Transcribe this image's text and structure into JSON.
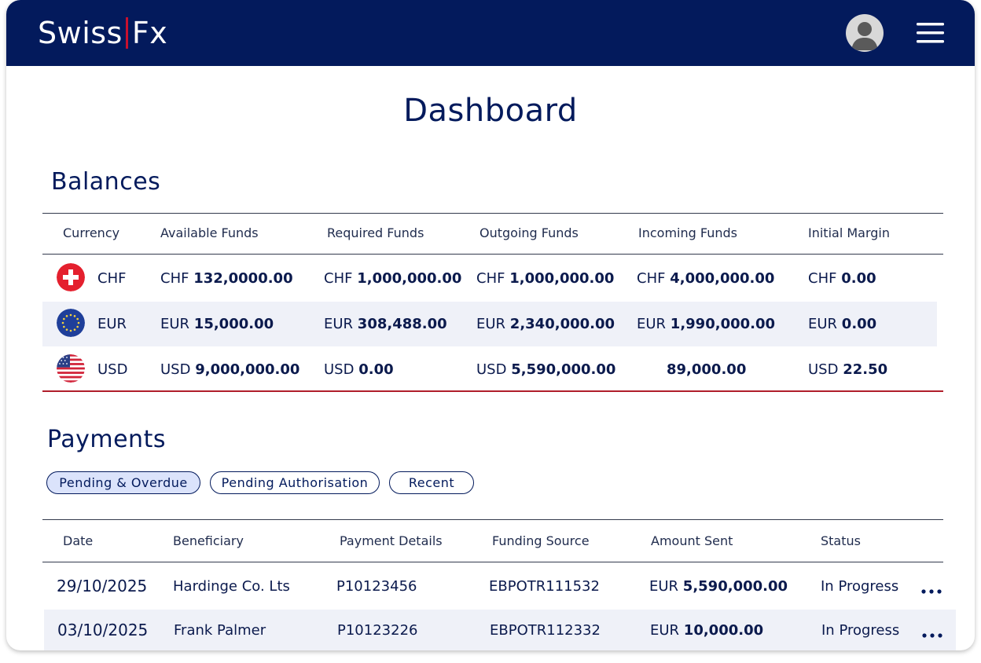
{
  "header": {
    "logo_left": "Swiss",
    "logo_right": "Fx",
    "brand_color": "#031a5c",
    "accent_color": "#c8102e",
    "avatar_icon": "user-avatar-icon",
    "menu_icon": "hamburger-menu-icon"
  },
  "page_title": "Dashboard",
  "balances": {
    "title": "Balances",
    "columns": [
      "Currency",
      "Available Funds",
      "Required Funds",
      "Outgoing Funds",
      "Incoming Funds",
      "Initial Margin"
    ],
    "rows": [
      {
        "flag": "swiss-flag-icon",
        "currency": "CHF",
        "available": {
          "prefix": "CHF",
          "amount": "132,0000.00"
        },
        "required": {
          "prefix": "CHF",
          "amount": "1,000,000.00"
        },
        "outgoing": {
          "prefix": "CHF",
          "amount": "1,000,000.00"
        },
        "incoming": {
          "prefix": "CHF",
          "amount": "4,000,000.00"
        },
        "margin": {
          "prefix": "CHF",
          "amount": "0.00"
        }
      },
      {
        "flag": "eu-flag-icon",
        "currency": "EUR",
        "available": {
          "prefix": "EUR",
          "amount": "15,000.00"
        },
        "required": {
          "prefix": "EUR",
          "amount": "308,488.00"
        },
        "outgoing": {
          "prefix": "EUR",
          "amount": "2,340,000.00"
        },
        "incoming": {
          "prefix": "EUR",
          "amount": "1,990,000.00"
        },
        "margin": {
          "prefix": "EUR",
          "amount": "0.00"
        }
      },
      {
        "flag": "us-flag-icon",
        "currency": "USD",
        "available": {
          "prefix": "USD",
          "amount": "9,000,000.00"
        },
        "required": {
          "prefix": "USD",
          "amount": "0.00"
        },
        "outgoing": {
          "prefix": "USD",
          "amount": "5,590,000.00"
        },
        "incoming": {
          "prefix": "",
          "amount": "89,000.00"
        },
        "margin": {
          "prefix": "USD",
          "amount": "22.50"
        }
      }
    ]
  },
  "payments": {
    "title": "Payments",
    "tabs": [
      {
        "label": "Pending & Overdue",
        "active": true
      },
      {
        "label": "Pending Authorisation",
        "active": false
      },
      {
        "label": "Recent",
        "active": false
      }
    ],
    "columns": [
      "Date",
      "Beneficiary",
      "Payment Details",
      "Funding Source",
      "Amount Sent",
      "Status"
    ],
    "rows": [
      {
        "date": "29/10/2025",
        "beneficiary": "Hardinge Co. Lts",
        "details": "P10123456",
        "source": "EBPOTR111532",
        "amount_prefix": "EUR",
        "amount": "5,590,000.00",
        "status": "In Progress",
        "menu_icon": "more-options-icon"
      },
      {
        "date": "03/10/2025",
        "beneficiary": "Frank Palmer",
        "details": "P10123226",
        "source": "EBPOTR112332",
        "amount_prefix": "EUR",
        "amount": "10,000.00",
        "status": "In Progress",
        "menu_icon": "more-options-icon"
      }
    ]
  }
}
